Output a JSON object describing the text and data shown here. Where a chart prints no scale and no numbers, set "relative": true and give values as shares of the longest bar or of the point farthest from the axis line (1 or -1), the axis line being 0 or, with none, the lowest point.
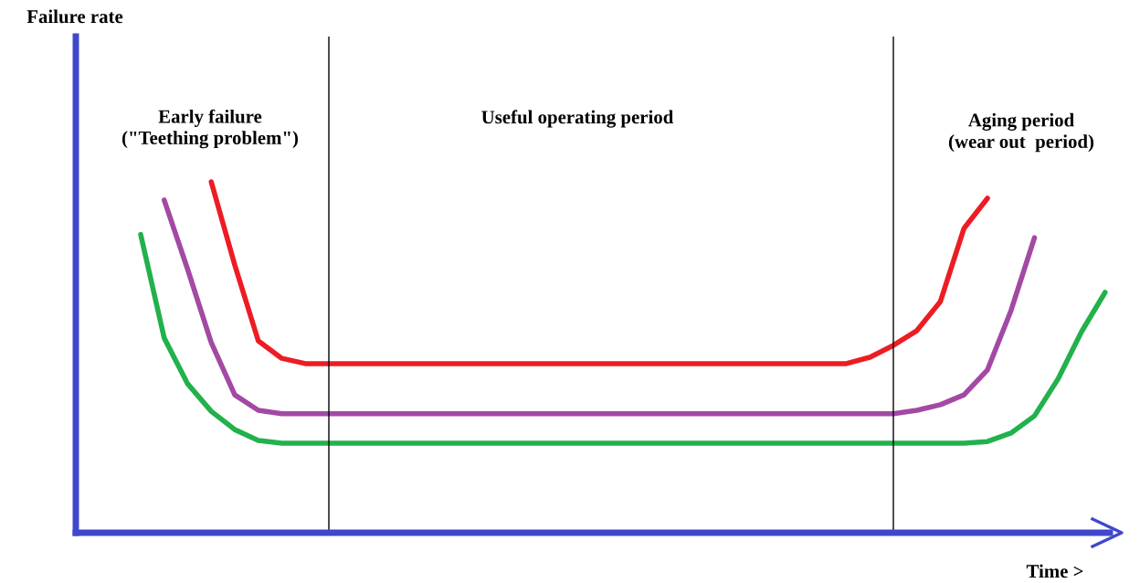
{
  "chart_data": {
    "type": "line",
    "relative": true,
    "xlabel": "Time >",
    "categories": [
      null,
      null,
      null,
      null,
      null,
      null,
      null,
      null,
      null,
      null,
      null,
      null,
      null,
      null,
      null,
      null,
      null,
      null,
      null,
      null,
      null,
      null,
      null,
      null,
      null,
      null,
      null,
      null,
      null,
      null,
      null,
      null,
      null,
      null,
      null,
      null,
      null,
      null,
      null,
      null,
      null,
      null,
      null,
      null
    ],
    "series": [
      {
        "color": "#ed1c24",
        "values": [
          null,
          null,
          null,
          null,
          null,
          1.0,
          0.763,
          0.547,
          0.497,
          0.482,
          0.482,
          0.482,
          0.482,
          0.482,
          0.482,
          0.482,
          0.482,
          0.482,
          0.482,
          0.482,
          0.482,
          0.482,
          0.482,
          0.482,
          0.482,
          0.482,
          0.482,
          0.482,
          0.482,
          0.482,
          0.482,
          0.482,
          0.482,
          0.5,
          0.534,
          0.576,
          0.659,
          0.867,
          0.953,
          null,
          null,
          null,
          null,
          null
        ]
      },
      {
        "color": "#a349a4",
        "values": [
          null,
          null,
          null,
          0.948,
          0.75,
          0.542,
          0.393,
          0.349,
          0.339,
          0.339,
          0.339,
          0.339,
          0.339,
          0.339,
          0.339,
          0.339,
          0.339,
          0.339,
          0.339,
          0.339,
          0.339,
          0.339,
          0.339,
          0.339,
          0.339,
          0.339,
          0.339,
          0.339,
          0.339,
          0.339,
          0.339,
          0.339,
          0.339,
          0.339,
          0.339,
          0.349,
          0.365,
          0.393,
          0.464,
          0.633,
          0.841,
          null,
          null,
          null
        ]
      },
      {
        "color": "#22b14c",
        "values": [
          null,
          null,
          0.85,
          0.555,
          0.424,
          0.346,
          0.294,
          0.263,
          0.255,
          0.255,
          0.255,
          0.255,
          0.255,
          0.255,
          0.255,
          0.255,
          0.255,
          0.255,
          0.255,
          0.255,
          0.255,
          0.255,
          0.255,
          0.255,
          0.255,
          0.255,
          0.255,
          0.255,
          0.255,
          0.255,
          0.255,
          0.255,
          0.255,
          0.255,
          0.255,
          0.255,
          0.255,
          0.255,
          0.26,
          0.284,
          0.333,
          0.438,
          0.573,
          0.685
        ]
      }
    ],
    "annotations": [
      "Failure rate",
      "Early failure\n(\"Teething problem\")",
      "Useful operating period",
      "Aging period\n(wear out  period)"
    ]
  }
}
